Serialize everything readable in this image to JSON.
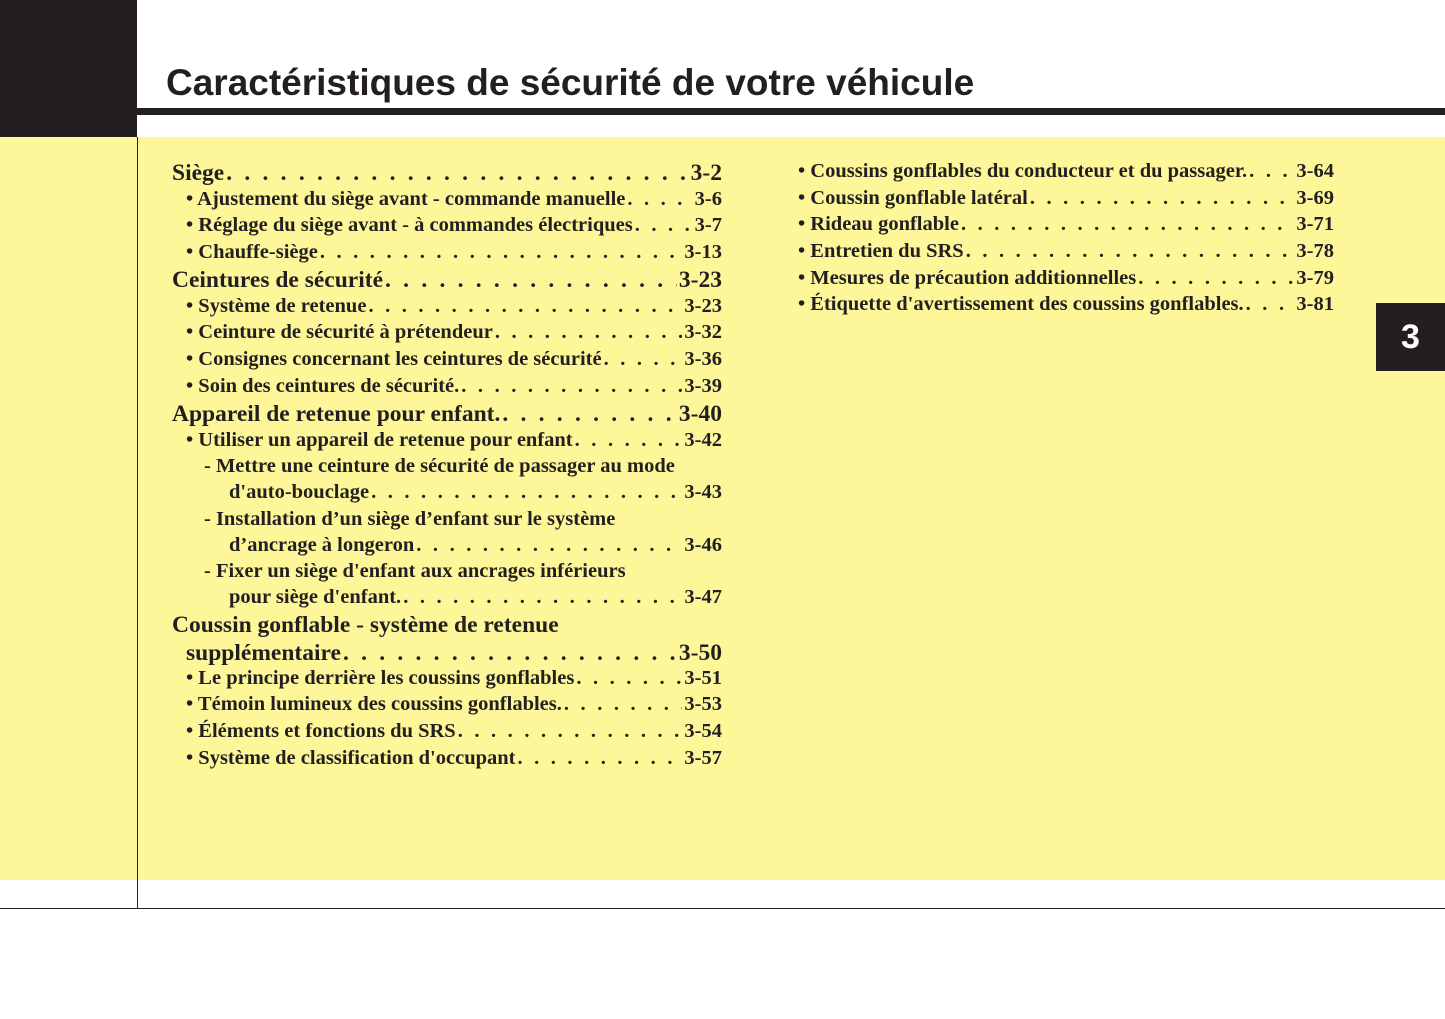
{
  "header": {
    "title": "Caractéristiques de sécurité de votre véhicule"
  },
  "chapter_tab": "3",
  "colors": {
    "background": "#fdf799",
    "ink": "#231f20"
  },
  "toc_left": [
    {
      "level": "l1",
      "text": "Siège",
      "page": "3-2"
    },
    {
      "level": "l2",
      "text": "• Ajustement du siège avant - commande manuelle",
      "page": "3-6"
    },
    {
      "level": "l2",
      "text": "• Réglage du siège avant - à commandes électriques ",
      "page": "3-7"
    },
    {
      "level": "l2",
      "text": "• Chauffe-siège ",
      "page": "3-13"
    },
    {
      "level": "l1",
      "text": "Ceintures de sécurité ",
      "page": "3-23"
    },
    {
      "level": "l2",
      "text": "• Système de retenue ",
      "page": "3-23"
    },
    {
      "level": "l2",
      "text": "• Ceinture de sécurité à prétendeur",
      "page": "3-32"
    },
    {
      "level": "l2",
      "text": "• Consignes concernant les ceintures de sécurité ",
      "page": "3-36"
    },
    {
      "level": "l2",
      "text": "• Soin des ceintures de sécurité.",
      "page": "3-39"
    },
    {
      "level": "l1",
      "text": "Appareil de retenue pour enfant.",
      "page": "3-40"
    },
    {
      "level": "l2",
      "text": "• Utiliser un appareil de retenue pour enfant",
      "page": "3-42"
    },
    {
      "level": "l3",
      "text": "- Mettre une ceinture de sécurité de passager au mode",
      "page": ""
    },
    {
      "level": "l4",
      "text": "d'auto-bouclage ",
      "page": "3-43"
    },
    {
      "level": "l3",
      "text": "- Installation d’un siège d’enfant sur le système",
      "page": ""
    },
    {
      "level": "l4",
      "text": "d’ancrage à longeron",
      "page": "3-46"
    },
    {
      "level": "l3",
      "text": "- Fixer un siège d'enfant aux ancrages inférieurs",
      "page": ""
    },
    {
      "level": "l4",
      "text": "pour siège d'enfant.",
      "page": "3-47"
    },
    {
      "level": "l1",
      "text": "Coussin gonflable - système de retenue",
      "page": ""
    },
    {
      "level": "l1c",
      "text": "supplémentaire",
      "page": "3-50"
    },
    {
      "level": "l2",
      "text": "• Le principe derrière les coussins gonflables",
      "page": "3-51"
    },
    {
      "level": "l2",
      "text": "• Témoin lumineux des coussins gonflables.",
      "page": "3-53"
    },
    {
      "level": "l2",
      "text": "• Éléments et fonctions du SRS ",
      "page": "3-54"
    },
    {
      "level": "l2",
      "text": "• Système de classification d'occupant",
      "page": "3-57"
    }
  ],
  "toc_right": [
    {
      "level": "l2",
      "text": "• Coussins gonflables du conducteur et du passager.",
      "page": "3-64"
    },
    {
      "level": "l2",
      "text": "• Coussin gonflable latéral ",
      "page": "3-69"
    },
    {
      "level": "l2",
      "text": "• Rideau gonflable ",
      "page": "3-71"
    },
    {
      "level": "l2",
      "text": "• Entretien du SRS",
      "page": "3-78"
    },
    {
      "level": "l2",
      "text": "• Mesures de précaution additionnelles",
      "page": "3-79"
    },
    {
      "level": "l2",
      "text": "• Étiquette d'avertissement des coussins gonflables.",
      "page": "3-81"
    }
  ]
}
